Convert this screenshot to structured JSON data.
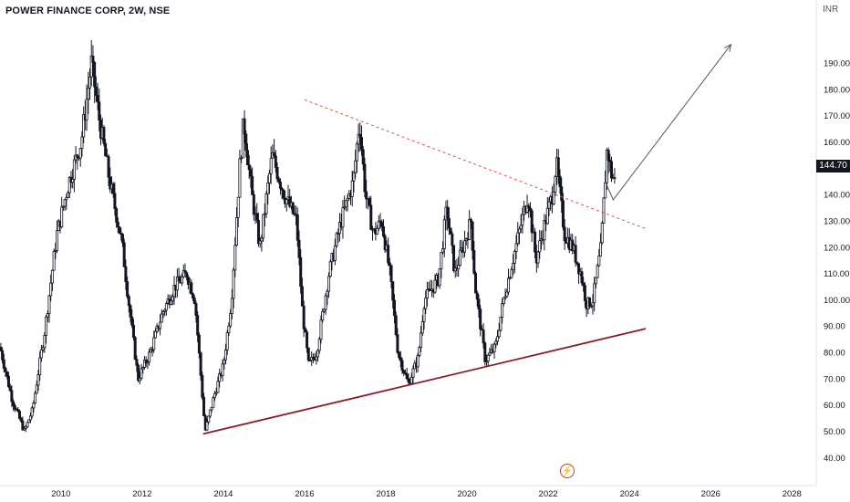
{
  "header": {
    "symbol": "POWER FINANCE CORP, 2W, NSE",
    "currency": "INR"
  },
  "last_price_label": "144.70",
  "event_icon_glyph": "⚡",
  "colors": {
    "candle": "#131722",
    "support": "#8b1a2b",
    "resistance": "#d9534f",
    "projection": "#555555",
    "axis_text": "#131722"
  },
  "chart_data": {
    "type": "candlestick",
    "title": "POWER FINANCE CORP, 2W, NSE",
    "ylabel": "INR",
    "ylim": [
      37,
      207
    ],
    "xlim": [
      2008.5,
      2028.6
    ],
    "y_ticks": [
      "190.00",
      "180.00",
      "170.00",
      "160.00",
      "150.00",
      "140.00",
      "130.00",
      "120.00",
      "110.00",
      "100.00",
      "90.00",
      "80.00",
      "70.00",
      "60.00",
      "50.00",
      "40.00"
    ],
    "x_ticks": [
      "2010",
      "2012",
      "2014",
      "2016",
      "2018",
      "2020",
      "2022",
      "2024",
      "2026",
      "2028"
    ],
    "grid": false,
    "last_price": 144.7,
    "price_path": [
      [
        2008.5,
        82
      ],
      [
        2008.8,
        62
      ],
      [
        2009.1,
        50
      ],
      [
        2009.3,
        58
      ],
      [
        2009.6,
        88
      ],
      [
        2009.9,
        125
      ],
      [
        2010.2,
        145
      ],
      [
        2010.5,
        160
      ],
      [
        2010.75,
        190
      ],
      [
        2010.95,
        168
      ],
      [
        2011.2,
        145
      ],
      [
        2011.5,
        122
      ],
      [
        2011.7,
        95
      ],
      [
        2011.9,
        70
      ],
      [
        2012.2,
        80
      ],
      [
        2012.5,
        95
      ],
      [
        2012.8,
        105
      ],
      [
        2013.1,
        110
      ],
      [
        2013.3,
        100
      ],
      [
        2013.55,
        50
      ],
      [
        2013.8,
        65
      ],
      [
        2014.0,
        75
      ],
      [
        2014.2,
        100
      ],
      [
        2014.4,
        150
      ],
      [
        2014.5,
        168
      ],
      [
        2014.7,
        140
      ],
      [
        2014.9,
        120
      ],
      [
        2015.2,
        155
      ],
      [
        2015.5,
        140
      ],
      [
        2015.8,
        130
      ],
      [
        2015.95,
        95
      ],
      [
        2016.1,
        75
      ],
      [
        2016.3,
        80
      ],
      [
        2016.6,
        110
      ],
      [
        2016.9,
        130
      ],
      [
        2017.2,
        145
      ],
      [
        2017.35,
        168
      ],
      [
        2017.5,
        140
      ],
      [
        2017.7,
        125
      ],
      [
        2017.9,
        130
      ],
      [
        2018.1,
        110
      ],
      [
        2018.3,
        80
      ],
      [
        2018.55,
        68
      ],
      [
        2018.8,
        78
      ],
      [
        2018.95,
        100
      ],
      [
        2019.3,
        108
      ],
      [
        2019.5,
        135
      ],
      [
        2019.7,
        110
      ],
      [
        2019.9,
        120
      ],
      [
        2020.1,
        130
      ],
      [
        2020.2,
        105
      ],
      [
        2020.45,
        77
      ],
      [
        2020.7,
        82
      ],
      [
        2020.9,
        100
      ],
      [
        2021.2,
        120
      ],
      [
        2021.5,
        140
      ],
      [
        2021.7,
        115
      ],
      [
        2021.9,
        128
      ],
      [
        2022.1,
        140
      ],
      [
        2022.2,
        152
      ],
      [
        2022.4,
        125
      ],
      [
        2022.6,
        120
      ],
      [
        2022.8,
        110
      ],
      [
        2022.95,
        98
      ],
      [
        2023.1,
        100
      ],
      [
        2023.3,
        120
      ],
      [
        2023.45,
        158
      ],
      [
        2023.55,
        148
      ],
      [
        2023.65,
        144.7
      ]
    ],
    "annotations": [
      {
        "kind": "support-trendline",
        "from": [
          2013.5,
          49
        ],
        "to": [
          2024.4,
          89
        ]
      },
      {
        "kind": "resistance-trendline-dashed",
        "from": [
          2016.0,
          176
        ],
        "to": [
          2024.4,
          127
        ]
      },
      {
        "kind": "projection-arrow",
        "from": [
          2023.6,
          138
        ],
        "to": [
          2026.5,
          197
        ]
      }
    ]
  }
}
